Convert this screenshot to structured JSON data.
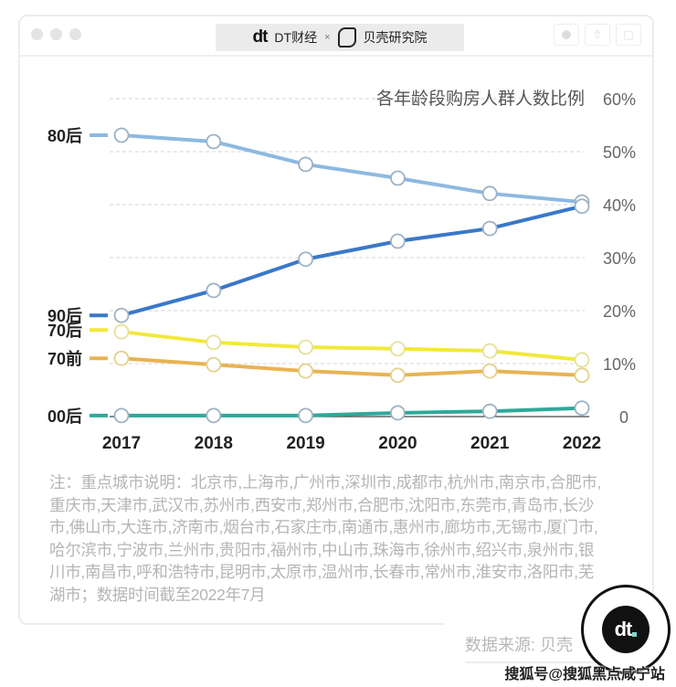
{
  "window": {
    "brand_left": "DT财经",
    "brand_sep": "×",
    "brand_right": "贝壳研究院",
    "dt_logo_text": "dt"
  },
  "chart_data": {
    "type": "line",
    "title": "各年龄段购房人群人数比例",
    "xlabel": "",
    "ylabel": "",
    "x": [
      "2017",
      "2018",
      "2019",
      "2020",
      "2021",
      "2022"
    ],
    "ylim": [
      0,
      60
    ],
    "yticks": [
      0,
      10,
      20,
      30,
      40,
      50,
      60
    ],
    "ytick_labels": [
      "0",
      "10%",
      "20%",
      "30%",
      "40%",
      "50%",
      "60%"
    ],
    "grid": true,
    "y_axis_position": "right",
    "series": [
      {
        "name": "80后",
        "color": "#8db9e0",
        "values": [
          53.1,
          51.9,
          47.6,
          45.0,
          42.1,
          40.5
        ]
      },
      {
        "name": "90后",
        "color": "#3a78c9",
        "values": [
          19.1,
          23.8,
          29.7,
          33.1,
          35.5,
          39.7
        ]
      },
      {
        "name": "70后",
        "color": "#f1e93a",
        "values": [
          16.0,
          14.0,
          13.1,
          12.8,
          12.4,
          10.7
        ]
      },
      {
        "name": "70前",
        "color": "#e8b352",
        "values": [
          11.0,
          9.8,
          8.6,
          7.8,
          8.6,
          7.8
        ]
      },
      {
        "name": "00后",
        "color": "#2ea99a",
        "values": [
          0.2,
          0.2,
          0.2,
          0.7,
          1.0,
          1.6
        ]
      }
    ]
  },
  "notes": "注：重点城市说明：北京市,上海市,广州市,深圳市,成都市,杭州市,南京市,合肥市,重庆市,天津市,武汉市,苏州市,西安市,郑州市,合肥市,沈阳市,东莞市,青岛市,长沙市,佛山市,大连市,济南市,烟台市,石家庄市,南通市,惠州市,廊坊市,无锡市,厦门市,哈尔滨市,宁波市,兰州市,贵阳市,福州市,中山市,珠海市,徐州市,绍兴市,泉州市,银川市,南昌市,呼和浩特市,昆明市,太原市,温州市,长春市,常州市,淮安市,洛阳市,芜湖市；数据时间截至2022年7月",
  "source": "数据来源: 贝壳",
  "badge_text": "dt",
  "watermark": "搜狐号@搜狐黑点咸宁站"
}
